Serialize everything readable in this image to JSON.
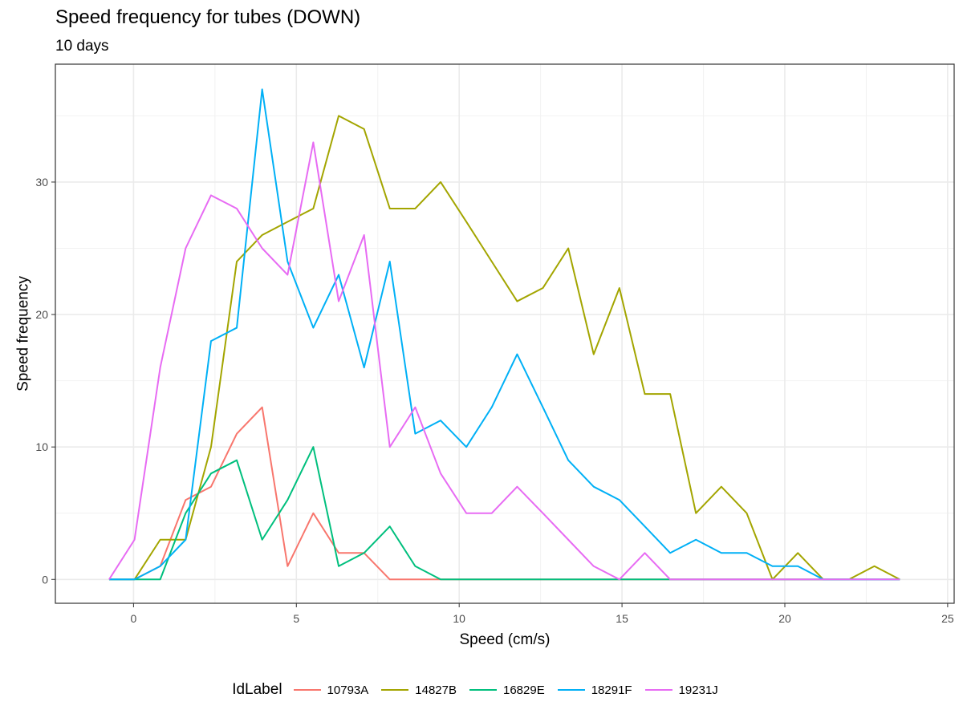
{
  "chart_data": {
    "type": "line",
    "title": "Speed frequency for tubes (DOWN)",
    "subtitle": "10  days",
    "xlabel": "Speed (cm/s)",
    "ylabel": "Speed frequency",
    "xlim": [
      -2.4,
      25.2
    ],
    "ylim": [
      -1.8,
      38.9
    ],
    "xticks": [
      0,
      5,
      10,
      15,
      20,
      25
    ],
    "yticks": [
      0,
      10,
      20,
      30
    ],
    "grid": true,
    "legend_position": "bottom",
    "legend_title": "IdLabel",
    "x": [
      -0.75,
      0.03,
      0.82,
      1.6,
      2.38,
      3.17,
      3.95,
      4.73,
      5.52,
      6.3,
      7.08,
      7.87,
      8.65,
      9.43,
      10.22,
      11.0,
      11.78,
      12.57,
      13.35,
      14.13,
      14.92,
      15.7,
      16.48,
      17.27,
      18.05,
      18.83,
      19.62,
      20.4,
      21.18,
      21.97,
      22.75,
      23.53
    ],
    "series": [
      {
        "name": "10793A",
        "color": "#F8766D",
        "values": [
          0,
          0,
          1,
          6,
          7,
          11,
          13,
          1,
          5,
          2,
          2,
          0,
          0,
          0,
          0,
          0,
          0,
          0,
          0,
          0,
          0,
          0,
          0,
          0,
          0,
          0,
          0,
          0,
          0,
          0,
          0,
          0
        ]
      },
      {
        "name": "14827B",
        "color": "#A3A500",
        "values": [
          null,
          0,
          3,
          3,
          10,
          24,
          26,
          27,
          28,
          35,
          34,
          28,
          28,
          30,
          27,
          24,
          21,
          22,
          25,
          17,
          22,
          14,
          14,
          5,
          7,
          5,
          0,
          2,
          0,
          0,
          1,
          0
        ]
      },
      {
        "name": "16829E",
        "color": "#00BF7D",
        "values": [
          0,
          0,
          0,
          5,
          8,
          9,
          3,
          6,
          10,
          1,
          2,
          4,
          1,
          0,
          0,
          0,
          0,
          0,
          0,
          0,
          0,
          0,
          0,
          0,
          0,
          0,
          0,
          0,
          0,
          0,
          0,
          0
        ]
      },
      {
        "name": "18291F",
        "color": "#00B0F6",
        "values": [
          0,
          0,
          1,
          3,
          18,
          19,
          37,
          24,
          19,
          23,
          16,
          24,
          11,
          12,
          10,
          13,
          17,
          13,
          9,
          7,
          6,
          4,
          2,
          3,
          2,
          2,
          1,
          1,
          0,
          0,
          0,
          0
        ]
      },
      {
        "name": "19231J",
        "color": "#E76BF3",
        "values": [
          0,
          3,
          16,
          25,
          29,
          28,
          25,
          23,
          33,
          21,
          26,
          10,
          13,
          8,
          5,
          5,
          7,
          5,
          3,
          1,
          0,
          2,
          0,
          0,
          0,
          0,
          0,
          0,
          0,
          0,
          0,
          0
        ]
      }
    ]
  }
}
